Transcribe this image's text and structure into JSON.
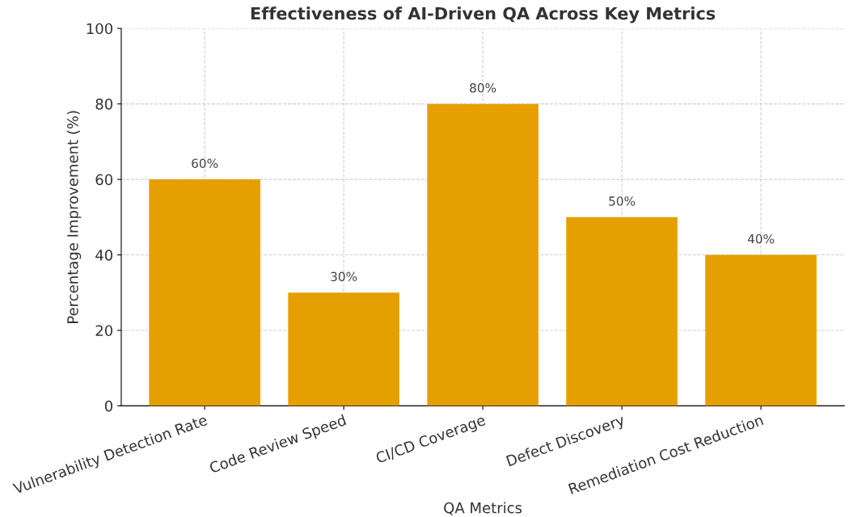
{
  "chart_data": {
    "type": "bar",
    "title": "Effectiveness of AI-Driven QA Across Key Metrics",
    "xlabel": "QA Metrics",
    "ylabel": "Percentage Improvement (%)",
    "categories": [
      "Vulnerability Detection Rate",
      "Code Review Speed",
      "CI/CD Coverage",
      "Defect Discovery",
      "Remediation Cost Reduction"
    ],
    "values": [
      60,
      30,
      80,
      50,
      40
    ],
    "color": "#e5a000",
    "value_labels": [
      "60%",
      "30%",
      "80%",
      "50%",
      "40%"
    ],
    "ylim": [
      0,
      100
    ],
    "yticks": [
      0,
      20,
      40,
      60,
      80,
      100
    ],
    "grid": true
  }
}
